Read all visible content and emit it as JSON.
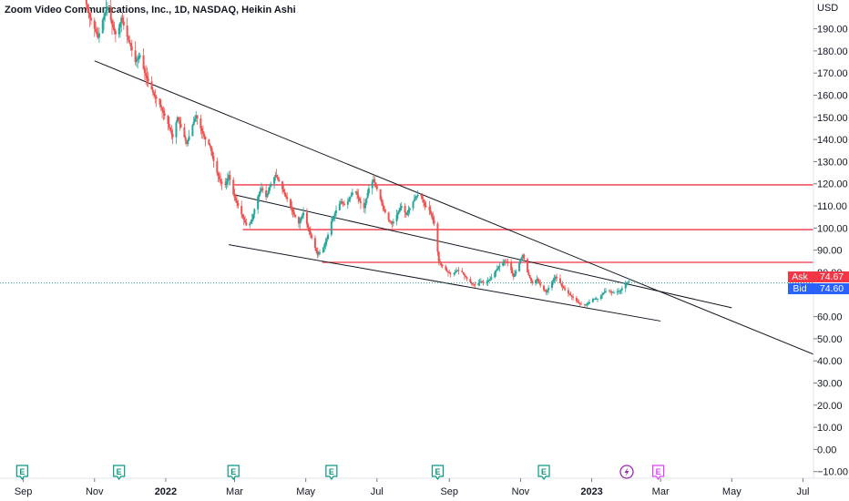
{
  "chart_data": {
    "type": "candlestick",
    "title": "Zoom Video Communications, Inc., 1D, NASDAQ, Heikin Ashi",
    "currency": "USD",
    "y_ticks": [
      190,
      180,
      170,
      160,
      150,
      140,
      130,
      120,
      110,
      100,
      90,
      80,
      60,
      50,
      40,
      30,
      20,
      10,
      0,
      -10
    ],
    "y_tick_labels": [
      "190.00",
      "180.00",
      "170.00",
      "160.00",
      "150.00",
      "140.00",
      "130.00",
      "120.00",
      "110.00",
      "100.00",
      "90.00",
      "80.00",
      "60.00",
      "50.00",
      "40.00",
      "30.00",
      "20.00",
      "10.00",
      "0.00",
      "−10.00"
    ],
    "ylim": [
      -13,
      203
    ],
    "x_ticks": [
      "Sep",
      "Nov",
      "2022",
      "Mar",
      "May",
      "Jul",
      "Sep",
      "Nov",
      "2023",
      "Mar",
      "May",
      "Jul"
    ],
    "x_tick_bold": [
      "2022",
      "2023"
    ],
    "x_tick_dates": [
      "2021-09-01",
      "2021-11-01",
      "2022-01-01",
      "2022-03-01",
      "2022-05-01",
      "2022-07-01",
      "2022-09-01",
      "2022-11-01",
      "2023-01-01",
      "2023-03-01",
      "2023-05-01",
      "2023-07-01"
    ],
    "xlim": [
      "2021-08-12",
      "2023-07-10"
    ],
    "price_line": 75.2,
    "ask": {
      "label": "Ask",
      "value": "74.67"
    },
    "bid": {
      "label": "Bid",
      "value": "74.60"
    },
    "price_points": [
      [
        "2021-10-24",
        203
      ],
      [
        "2021-10-28",
        195
      ],
      [
        "2021-11-01",
        190
      ],
      [
        "2021-11-04",
        186
      ],
      [
        "2021-11-08",
        194
      ],
      [
        "2021-11-12",
        200
      ],
      [
        "2021-11-16",
        192
      ],
      [
        "2021-11-20",
        186
      ],
      [
        "2021-11-24",
        195
      ],
      [
        "2021-11-28",
        188
      ],
      [
        "2021-12-02",
        182
      ],
      [
        "2021-12-06",
        175
      ],
      [
        "2021-12-10",
        178
      ],
      [
        "2021-12-14",
        170
      ],
      [
        "2021-12-18",
        165
      ],
      [
        "2021-12-22",
        160
      ],
      [
        "2021-12-26",
        157
      ],
      [
        "2021-12-30",
        152
      ],
      [
        "2022-01-03",
        147
      ],
      [
        "2022-01-07",
        141
      ],
      [
        "2022-01-11",
        150
      ],
      [
        "2022-01-15",
        144
      ],
      [
        "2022-01-19",
        138
      ],
      [
        "2022-01-23",
        145
      ],
      [
        "2022-01-27",
        151
      ],
      [
        "2022-01-31",
        145
      ],
      [
        "2022-02-04",
        140
      ],
      [
        "2022-02-08",
        137
      ],
      [
        "2022-02-12",
        128
      ],
      [
        "2022-02-16",
        122
      ],
      [
        "2022-02-20",
        118
      ],
      [
        "2022-02-24",
        124
      ],
      [
        "2022-02-28",
        115
      ],
      [
        "2022-03-04",
        110
      ],
      [
        "2022-03-08",
        105
      ],
      [
        "2022-03-12",
        100
      ],
      [
        "2022-03-16",
        104
      ],
      [
        "2022-03-20",
        113
      ],
      [
        "2022-03-24",
        118
      ],
      [
        "2022-03-28",
        114
      ],
      [
        "2022-04-01",
        120
      ],
      [
        "2022-04-05",
        124
      ],
      [
        "2022-04-09",
        120
      ],
      [
        "2022-04-13",
        115
      ],
      [
        "2022-04-17",
        111
      ],
      [
        "2022-04-21",
        106
      ],
      [
        "2022-04-25",
        102
      ],
      [
        "2022-04-29",
        107
      ],
      [
        "2022-05-03",
        100
      ],
      [
        "2022-05-07",
        94
      ],
      [
        "2022-05-11",
        88
      ],
      [
        "2022-05-15",
        90
      ],
      [
        "2022-05-19",
        95
      ],
      [
        "2022-05-23",
        103
      ],
      [
        "2022-05-27",
        108
      ],
      [
        "2022-05-31",
        112
      ],
      [
        "2022-06-04",
        110
      ],
      [
        "2022-06-08",
        114
      ],
      [
        "2022-06-12",
        118
      ],
      [
        "2022-06-16",
        112
      ],
      [
        "2022-06-20",
        109
      ],
      [
        "2022-06-24",
        118
      ],
      [
        "2022-06-28",
        122
      ],
      [
        "2022-07-02",
        116
      ],
      [
        "2022-07-06",
        110
      ],
      [
        "2022-07-10",
        104
      ],
      [
        "2022-07-14",
        102
      ],
      [
        "2022-07-18",
        106
      ],
      [
        "2022-07-22",
        110
      ],
      [
        "2022-07-26",
        106
      ],
      [
        "2022-07-30",
        110
      ],
      [
        "2022-08-03",
        114
      ],
      [
        "2022-08-07",
        116
      ],
      [
        "2022-08-11",
        110
      ],
      [
        "2022-08-15",
        108
      ],
      [
        "2022-08-19",
        102
      ],
      [
        "2022-08-23",
        85
      ],
      [
        "2022-08-27",
        82
      ],
      [
        "2022-08-31",
        80
      ],
      [
        "2022-09-04",
        79
      ],
      [
        "2022-09-08",
        81
      ],
      [
        "2022-09-12",
        80
      ],
      [
        "2022-09-16",
        77
      ],
      [
        "2022-09-20",
        75
      ],
      [
        "2022-09-24",
        74
      ],
      [
        "2022-09-28",
        76
      ],
      [
        "2022-10-02",
        75
      ],
      [
        "2022-10-06",
        77
      ],
      [
        "2022-10-10",
        80
      ],
      [
        "2022-10-14",
        83
      ],
      [
        "2022-10-18",
        85
      ],
      [
        "2022-10-22",
        84
      ],
      [
        "2022-10-26",
        78
      ],
      [
        "2022-10-30",
        83
      ],
      [
        "2022-11-03",
        88
      ],
      [
        "2022-11-07",
        80
      ],
      [
        "2022-11-11",
        75
      ],
      [
        "2022-11-15",
        77
      ],
      [
        "2022-11-19",
        73
      ],
      [
        "2022-11-23",
        71
      ],
      [
        "2022-11-27",
        75
      ],
      [
        "2022-12-01",
        78
      ],
      [
        "2022-12-05",
        75
      ],
      [
        "2022-12-09",
        72
      ],
      [
        "2022-12-13",
        70
      ],
      [
        "2022-12-17",
        68
      ],
      [
        "2022-12-21",
        66
      ],
      [
        "2022-12-25",
        65
      ],
      [
        "2022-12-29",
        66
      ],
      [
        "2023-01-02",
        68
      ],
      [
        "2023-01-06",
        68
      ],
      [
        "2023-01-10",
        70
      ],
      [
        "2023-01-14",
        72
      ],
      [
        "2023-01-18",
        71
      ],
      [
        "2023-01-22",
        71
      ],
      [
        "2023-01-26",
        72
      ],
      [
        "2023-01-30",
        75
      ],
      [
        "2023-02-02",
        76
      ]
    ],
    "trend_lines": [
      {
        "from": [
          "2021-11-01",
          175.5
        ],
        "to": [
          "2023-07-10",
          43
        ]
      },
      {
        "from": [
          "2022-03-01",
          115
        ],
        "to": [
          "2023-05-01",
          64
        ]
      },
      {
        "from": [
          "2022-02-24",
          92.5
        ],
        "to": [
          "2023-03-01",
          58
        ]
      }
    ],
    "horizontal_levels": [
      {
        "value": 119.5,
        "from": "2022-03-01"
      },
      {
        "value": 99.3,
        "from": "2022-03-08"
      },
      {
        "value": 84.5,
        "from": "2022-05-15"
      }
    ],
    "event_markers": [
      {
        "icon": "E",
        "date": "2021-08-31",
        "kind": "earnings"
      },
      {
        "icon": "E",
        "date": "2021-11-22",
        "kind": "earnings"
      },
      {
        "icon": "E",
        "date": "2022-02-28",
        "kind": "earnings"
      },
      {
        "icon": "E",
        "date": "2022-05-23",
        "kind": "earnings"
      },
      {
        "icon": "E",
        "date": "2022-08-22",
        "kind": "earnings"
      },
      {
        "icon": "E",
        "date": "2022-11-21",
        "kind": "earnings"
      },
      {
        "icon": "lightning-icon",
        "date": "2023-01-31",
        "kind": "news"
      },
      {
        "icon": "E",
        "date": "2023-02-27",
        "kind": "earnings-upcoming"
      }
    ],
    "colors": {
      "up": "#26a69a",
      "down": "#ef5350",
      "level": "#f23645",
      "trend": "#131722",
      "ask": "#f23645",
      "bid": "#2962ff",
      "price_line": "#26a69a",
      "earnings": "#089981",
      "news": "#9c27b0",
      "upcoming": "#e040fb"
    }
  }
}
